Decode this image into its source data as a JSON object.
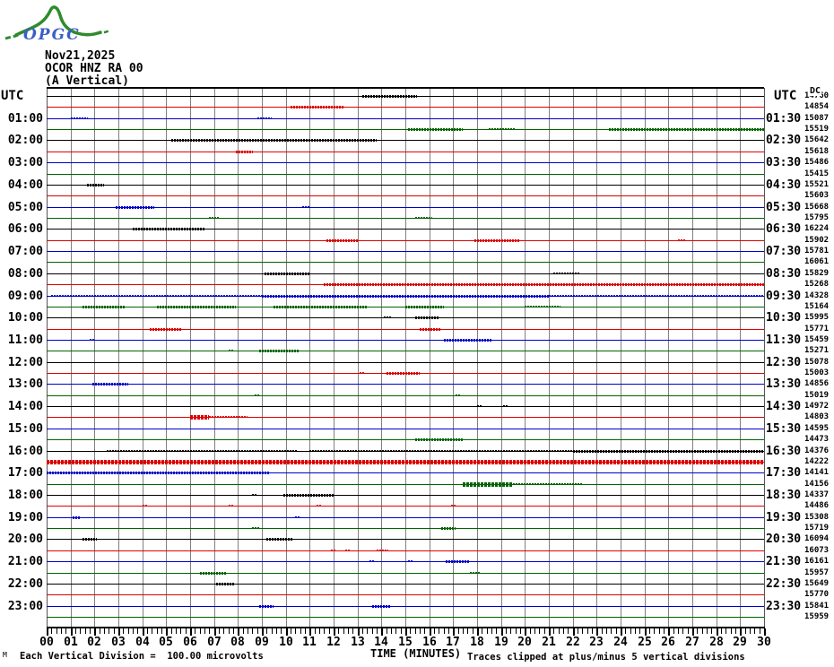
{
  "logo": {
    "text": "OPGC"
  },
  "header": {
    "date": "Nov21,2025",
    "station": "OCOR HNZ RA 00",
    "component": "(A Vertical)"
  },
  "axes": {
    "left_header": "UTC",
    "right_header": "UTC",
    "dc_header": "DC",
    "left_labels": [
      "01:00",
      "02:00",
      "03:00",
      "04:00",
      "05:00",
      "06:00",
      "07:00",
      "08:00",
      "09:00",
      "10:00",
      "11:00",
      "12:00",
      "13:00",
      "14:00",
      "15:00",
      "16:00",
      "17:00",
      "18:00",
      "19:00",
      "20:00",
      "21:00",
      "22:00",
      "23:00"
    ],
    "right_labels": [
      "01:30",
      "02:30",
      "03:30",
      "04:30",
      "05:30",
      "06:30",
      "07:30",
      "08:30",
      "09:30",
      "10:30",
      "11:30",
      "12:30",
      "13:30",
      "14:30",
      "15:30",
      "16:30",
      "17:30",
      "18:30",
      "19:30",
      "20:30",
      "21:30",
      "22:30",
      "23:30"
    ],
    "x_labels": [
      "00",
      "01",
      "02",
      "03",
      "04",
      "05",
      "06",
      "07",
      "08",
      "09",
      "10",
      "11",
      "12",
      "13",
      "14",
      "15",
      "16",
      "17",
      "18",
      "19",
      "20",
      "21",
      "22",
      "23",
      "24",
      "25",
      "26",
      "27",
      "28",
      "29",
      "30"
    ],
    "x_title": "TIME (MINUTES)"
  },
  "footer": {
    "left": "Each Vertical Division =  100.00 microvolts",
    "right": "Traces clipped at plus/minus 5 vertical divisions",
    "corner_glyph": "M"
  },
  "colors": {
    "black": "#000000",
    "red": "#dd0000",
    "blue": "#0000cc",
    "green": "#006400",
    "grid": "#808080",
    "logo_green": "#2e8b2e",
    "logo_blue": "#3a5fc8"
  },
  "chart_data": {
    "type": "line",
    "subtype": "helicorder-seismogram",
    "title": "OCOR HNZ RA 00 (A Vertical) Nov21,2025",
    "xlabel": "TIME (MINUTES)",
    "x_range_minutes": [
      0,
      30
    ],
    "minutes_per_row": 30,
    "grid": "vertical gray line each minute",
    "dc_column_note": "DC offset value printed at right end of each 30-minute trace row",
    "rows": [
      {
        "start": "00:00",
        "end": "00:30",
        "color": "black",
        "dc": 14760,
        "noise": [
          [
            13.2,
            15.5,
            2
          ]
        ]
      },
      {
        "start": "00:30",
        "end": "01:00",
        "color": "red",
        "dc": 14854,
        "noise": [
          [
            10.2,
            12.4,
            2
          ]
        ]
      },
      {
        "start": "01:00",
        "end": "01:30",
        "color": "blue",
        "dc": 15087,
        "noise": [
          [
            1.0,
            1.7,
            1
          ],
          [
            8.8,
            9.4,
            1
          ]
        ]
      },
      {
        "start": "01:30",
        "end": "02:00",
        "color": "green",
        "dc": 15519,
        "noise": [
          [
            15.1,
            17.4,
            2
          ],
          [
            18.5,
            19.6,
            1
          ],
          [
            23.5,
            30,
            2
          ]
        ]
      },
      {
        "start": "02:00",
        "end": "02:30",
        "color": "black",
        "dc": 15642,
        "noise": [
          [
            5.2,
            13.8,
            2
          ]
        ]
      },
      {
        "start": "02:30",
        "end": "03:00",
        "color": "red",
        "dc": 15618,
        "noise": [
          [
            7.9,
            8.6,
            2
          ]
        ]
      },
      {
        "start": "03:00",
        "end": "03:30",
        "color": "blue",
        "dc": 15486,
        "noise": []
      },
      {
        "start": "03:30",
        "end": "04:00",
        "color": "green",
        "dc": 15415,
        "noise": []
      },
      {
        "start": "04:00",
        "end": "04:30",
        "color": "black",
        "dc": 15521,
        "noise": [
          [
            1.7,
            2.4,
            2
          ]
        ]
      },
      {
        "start": "04:30",
        "end": "05:00",
        "color": "red",
        "dc": 15603,
        "noise": []
      },
      {
        "start": "05:00",
        "end": "05:30",
        "color": "blue",
        "dc": 15668,
        "noise": [
          [
            2.9,
            4.5,
            2
          ],
          [
            10.7,
            11.0,
            1
          ]
        ]
      },
      {
        "start": "05:30",
        "end": "06:00",
        "color": "green",
        "dc": 15795,
        "noise": [
          [
            6.8,
            7.2,
            1
          ],
          [
            15.4,
            16.1,
            1
          ]
        ]
      },
      {
        "start": "06:00",
        "end": "06:30",
        "color": "black",
        "dc": 16224,
        "noise": [
          [
            3.6,
            6.6,
            2
          ]
        ]
      },
      {
        "start": "06:30",
        "end": "07:00",
        "color": "red",
        "dc": 15902,
        "noise": [
          [
            11.7,
            13.0,
            2
          ],
          [
            17.9,
            19.8,
            2
          ],
          [
            26.4,
            26.7,
            1
          ]
        ]
      },
      {
        "start": "07:00",
        "end": "07:30",
        "color": "blue",
        "dc": 15781,
        "noise": []
      },
      {
        "start": "07:30",
        "end": "08:00",
        "color": "green",
        "dc": 16061,
        "noise": []
      },
      {
        "start": "08:00",
        "end": "08:30",
        "color": "black",
        "dc": 15829,
        "noise": [
          [
            9.1,
            11.0,
            2
          ],
          [
            21.2,
            22.3,
            1
          ]
        ]
      },
      {
        "start": "08:30",
        "end": "09:00",
        "color": "red",
        "dc": 15268,
        "noise": [
          [
            11.6,
            30,
            2
          ]
        ]
      },
      {
        "start": "09:00",
        "end": "09:30",
        "color": "blue",
        "dc": 14328,
        "noise": [
          [
            0.2,
            9.0,
            1
          ],
          [
            9.0,
            21.0,
            2
          ],
          [
            21.0,
            30,
            1
          ]
        ]
      },
      {
        "start": "09:30",
        "end": "10:00",
        "color": "green",
        "dc": 15164,
        "noise": [
          [
            1.5,
            3.3,
            2
          ],
          [
            4.6,
            7.9,
            2
          ],
          [
            9.5,
            13.4,
            2
          ],
          [
            15.0,
            16.6,
            2
          ],
          [
            20.0,
            21.5,
            1
          ]
        ]
      },
      {
        "start": "10:00",
        "end": "10:30",
        "color": "black",
        "dc": 15995,
        "noise": [
          [
            14.1,
            14.4,
            1
          ],
          [
            15.4,
            16.4,
            2
          ]
        ]
      },
      {
        "start": "10:30",
        "end": "11:00",
        "color": "red",
        "dc": 15771,
        "noise": [
          [
            4.3,
            5.6,
            2
          ],
          [
            15.6,
            16.5,
            2
          ]
        ]
      },
      {
        "start": "11:00",
        "end": "11:30",
        "color": "blue",
        "dc": 15459,
        "noise": [
          [
            1.8,
            2.0,
            1
          ],
          [
            16.6,
            18.6,
            2
          ]
        ]
      },
      {
        "start": "11:30",
        "end": "12:00",
        "color": "green",
        "dc": 15271,
        "noise": [
          [
            7.6,
            7.8,
            1
          ],
          [
            8.9,
            10.6,
            2
          ]
        ]
      },
      {
        "start": "12:00",
        "end": "12:30",
        "color": "black",
        "dc": 15078,
        "noise": []
      },
      {
        "start": "12:30",
        "end": "13:00",
        "color": "red",
        "dc": 15003,
        "noise": [
          [
            13.1,
            13.3,
            1
          ],
          [
            14.2,
            15.6,
            2
          ]
        ]
      },
      {
        "start": "13:00",
        "end": "13:30",
        "color": "blue",
        "dc": 14856,
        "noise": [
          [
            1.9,
            3.4,
            2
          ]
        ]
      },
      {
        "start": "13:30",
        "end": "14:00",
        "color": "green",
        "dc": 15019,
        "noise": [
          [
            8.7,
            8.9,
            1
          ],
          [
            17.1,
            17.3,
            1
          ]
        ]
      },
      {
        "start": "14:00",
        "end": "14:30",
        "color": "black",
        "dc": 14972,
        "noise": [
          [
            18.0,
            18.2,
            1
          ],
          [
            19.1,
            19.3,
            1
          ]
        ]
      },
      {
        "start": "14:30",
        "end": "15:00",
        "color": "red",
        "dc": 14803,
        "noise": [
          [
            6.0,
            6.8,
            3
          ],
          [
            6.8,
            8.4,
            1
          ]
        ]
      },
      {
        "start": "15:00",
        "end": "15:30",
        "color": "blue",
        "dc": 14595,
        "noise": []
      },
      {
        "start": "15:30",
        "end": "16:00",
        "color": "green",
        "dc": 14473,
        "noise": [
          [
            15.4,
            17.4,
            2
          ]
        ]
      },
      {
        "start": "16:00",
        "end": "16:30",
        "color": "black",
        "dc": 14376,
        "noise": [
          [
            2.5,
            10.5,
            1
          ],
          [
            11.0,
            22.0,
            1
          ],
          [
            22.0,
            30,
            2
          ]
        ]
      },
      {
        "start": "16:30",
        "end": "17:00",
        "color": "red",
        "dc": 14222,
        "noise": [
          [
            0,
            30,
            3
          ]
        ]
      },
      {
        "start": "17:00",
        "end": "17:30",
        "color": "blue",
        "dc": 14141,
        "noise": [
          [
            0,
            9.3,
            2
          ]
        ]
      },
      {
        "start": "17:30",
        "end": "18:00",
        "color": "green",
        "dc": 14156,
        "noise": [
          [
            17.4,
            19.5,
            3
          ],
          [
            19.5,
            22.4,
            1
          ]
        ]
      },
      {
        "start": "18:00",
        "end": "18:30",
        "color": "black",
        "dc": 14337,
        "noise": [
          [
            8.6,
            8.8,
            1
          ],
          [
            9.9,
            12.0,
            2
          ]
        ]
      },
      {
        "start": "18:30",
        "end": "19:00",
        "color": "red",
        "dc": 14486,
        "noise": [
          [
            4.0,
            4.2,
            1
          ],
          [
            7.6,
            7.8,
            1
          ],
          [
            11.3,
            11.5,
            1
          ],
          [
            16.9,
            17.1,
            1
          ]
        ]
      },
      {
        "start": "19:00",
        "end": "19:30",
        "color": "blue",
        "dc": 15308,
        "noise": [
          [
            1.1,
            1.4,
            2
          ],
          [
            10.4,
            10.6,
            1
          ]
        ]
      },
      {
        "start": "19:30",
        "end": "20:00",
        "color": "green",
        "dc": 15719,
        "noise": [
          [
            8.6,
            8.9,
            1
          ],
          [
            16.5,
            17.1,
            2
          ]
        ]
      },
      {
        "start": "20:00",
        "end": "20:30",
        "color": "black",
        "dc": 16094,
        "noise": [
          [
            1.5,
            2.1,
            2
          ],
          [
            9.2,
            10.3,
            2
          ]
        ]
      },
      {
        "start": "20:30",
        "end": "21:00",
        "color": "red",
        "dc": 16073,
        "noise": [
          [
            11.9,
            12.1,
            1
          ],
          [
            12.5,
            12.7,
            1
          ],
          [
            13.8,
            14.3,
            1
          ]
        ]
      },
      {
        "start": "21:00",
        "end": "21:30",
        "color": "blue",
        "dc": 16161,
        "noise": [
          [
            13.5,
            13.7,
            1
          ],
          [
            15.1,
            15.3,
            1
          ],
          [
            16.7,
            17.7,
            2
          ]
        ]
      },
      {
        "start": "21:30",
        "end": "22:00",
        "color": "green",
        "dc": 15957,
        "noise": [
          [
            6.4,
            7.5,
            2
          ],
          [
            17.7,
            18.1,
            1
          ]
        ]
      },
      {
        "start": "22:00",
        "end": "22:30",
        "color": "black",
        "dc": 15649,
        "noise": [
          [
            7.1,
            7.9,
            2
          ]
        ]
      },
      {
        "start": "22:30",
        "end": "23:00",
        "color": "red",
        "dc": 15770,
        "noise": []
      },
      {
        "start": "23:00",
        "end": "23:30",
        "color": "blue",
        "dc": 15841,
        "noise": [
          [
            8.9,
            9.5,
            2
          ],
          [
            13.6,
            14.4,
            2
          ]
        ]
      },
      {
        "start": "23:30",
        "end": "24:00",
        "color": "green",
        "dc": 15959,
        "noise": []
      }
    ]
  }
}
